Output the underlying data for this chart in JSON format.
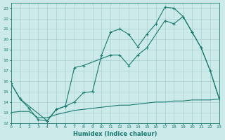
{
  "title": "",
  "xlabel": "Humidex (Indice chaleur)",
  "bg_color": "#cceaea",
  "grid_color": "#aacfcf",
  "line_color": "#1a7a6e",
  "xlim": [
    0,
    23
  ],
  "ylim": [
    12,
    23.5
  ],
  "yticks": [
    12,
    13,
    14,
    15,
    16,
    17,
    18,
    19,
    20,
    21,
    22,
    23
  ],
  "xticks": [
    0,
    1,
    2,
    3,
    4,
    5,
    6,
    7,
    8,
    9,
    10,
    11,
    12,
    13,
    14,
    15,
    16,
    17,
    18,
    19,
    20,
    21,
    22,
    23
  ],
  "curve1_x": [
    0,
    1,
    2,
    3,
    4,
    5,
    6,
    7,
    8,
    9,
    10,
    11,
    12,
    13,
    14,
    15,
    16,
    17,
    18,
    19,
    20,
    21,
    22,
    23
  ],
  "curve1_y": [
    15.8,
    14.3,
    13.4,
    12.3,
    12.2,
    13.3,
    13.6,
    14.0,
    14.9,
    15.0,
    18.5,
    20.7,
    21.0,
    20.5,
    19.3,
    20.5,
    21.5,
    23.1,
    23.0,
    22.2,
    20.7,
    19.2,
    17.0,
    14.3
  ],
  "curve2_x": [
    0,
    1,
    4,
    5,
    6,
    7,
    8,
    11,
    12,
    13,
    14,
    15,
    17,
    18,
    19,
    20,
    21,
    22,
    23
  ],
  "curve2_y": [
    15.8,
    14.3,
    12.2,
    13.3,
    13.6,
    17.3,
    17.5,
    18.5,
    18.5,
    17.5,
    18.5,
    19.2,
    21.8,
    21.5,
    22.2,
    20.7,
    19.2,
    17.0,
    14.3
  ],
  "flat_x": [
    0,
    1,
    2,
    3,
    4,
    5,
    6,
    7,
    8,
    9,
    10,
    11,
    12,
    13,
    14,
    15,
    16,
    17,
    18,
    19,
    20,
    21,
    22,
    23
  ],
  "flat_y": [
    13.0,
    13.1,
    13.1,
    12.5,
    12.5,
    12.8,
    13.0,
    13.2,
    13.3,
    13.4,
    13.5,
    13.6,
    13.7,
    13.7,
    13.8,
    13.9,
    14.0,
    14.0,
    14.1,
    14.1,
    14.2,
    14.2,
    14.2,
    14.3
  ]
}
